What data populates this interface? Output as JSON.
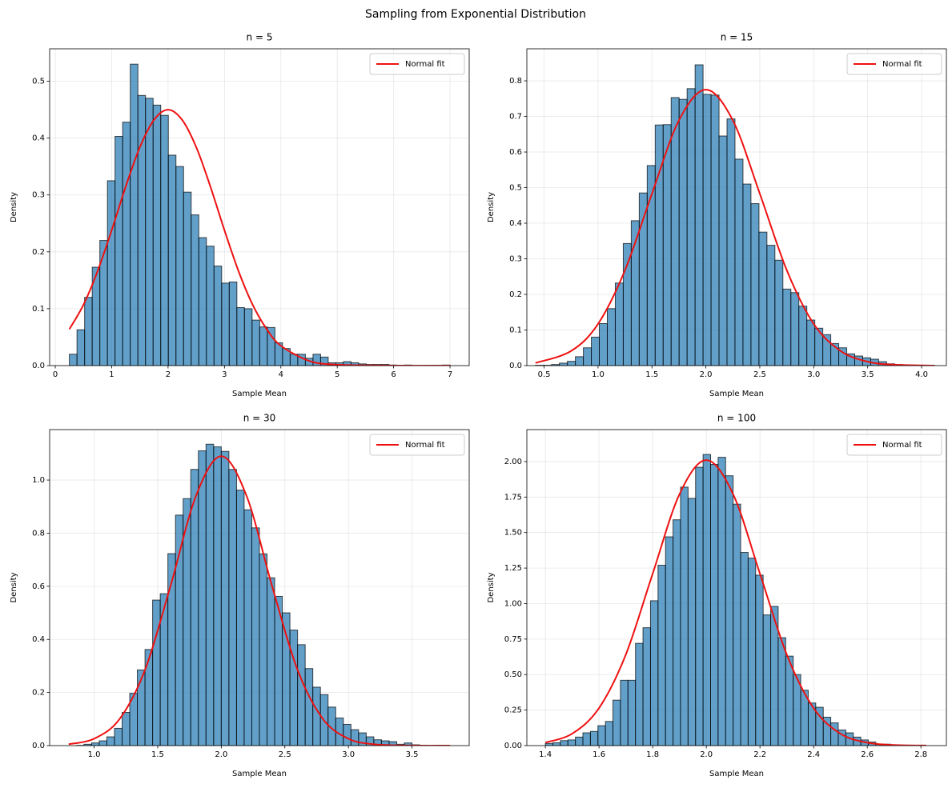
{
  "title": "Sampling from Exponential Distribution",
  "chart_data": [
    {
      "type": "histogram",
      "title": "n = 5",
      "x_label": "Sample Mean",
      "y_label": "Density",
      "color": "#1f77b4",
      "grid": true,
      "legend": "upper right",
      "xlim": [
        -0.1,
        7.34
      ],
      "ylim": [
        0,
        0.557
      ],
      "xticks": [
        0,
        1,
        2,
        3,
        4,
        5,
        6,
        7
      ],
      "yticks": [
        {
          "value": 0,
          "label": "0.0"
        },
        0.1,
        0.2,
        0.3,
        0.4,
        0.5
      ],
      "bins": [
        0.25,
        0.385,
        0.52,
        0.655,
        0.79,
        0.925,
        1.06,
        1.195,
        1.33,
        1.465,
        1.6,
        1.735,
        1.87,
        2.005,
        2.14,
        2.275,
        2.41,
        2.545,
        2.68,
        2.815,
        2.95,
        3.085,
        3.22,
        3.355,
        3.49,
        3.625,
        3.76,
        3.895,
        4.03,
        4.165,
        4.3,
        4.435,
        4.57,
        4.705,
        4.84,
        4.975,
        5.11,
        5.245,
        5.38,
        5.515,
        5.65,
        5.785,
        5.92,
        6.055,
        6.19,
        6.325,
        6.46,
        6.595,
        6.73,
        6.865,
        7.0
      ],
      "values": [
        0.02,
        0.063,
        0.12,
        0.173,
        0.22,
        0.325,
        0.403,
        0.428,
        0.53,
        0.475,
        0.47,
        0.458,
        0.44,
        0.37,
        0.35,
        0.305,
        0.265,
        0.225,
        0.21,
        0.175,
        0.145,
        0.147,
        0.102,
        0.1,
        0.08,
        0.068,
        0.067,
        0.04,
        0.03,
        0.02,
        0.02,
        0.013,
        0.02,
        0.015,
        0.005,
        0.005,
        0.007,
        0.005,
        0.003,
        0.002,
        0.002,
        0.002,
        0.001,
        0,
        0.001,
        0,
        0,
        0,
        0,
        0.001
      ],
      "line": {
        "name": "Normal fit",
        "color": "#ee1111",
        "x": [
          0.25,
          0.5,
          0.75,
          1.0,
          1.25,
          1.5,
          1.75,
          2.0,
          2.25,
          2.5,
          2.75,
          3.0,
          3.25,
          3.5,
          3.75,
          4.0,
          4.5,
          5.0,
          6.0,
          7.0
        ],
        "values": [
          0.064,
          0.107,
          0.166,
          0.238,
          0.315,
          0.384,
          0.432,
          0.45,
          0.432,
          0.384,
          0.315,
          0.238,
          0.166,
          0.107,
          0.064,
          0.035,
          0.0084,
          0.0015,
          0,
          0
        ]
      }
    },
    {
      "type": "histogram",
      "title": "n = 15",
      "x_label": "Sample Mean",
      "y_label": "Density",
      "color": "#1f77b4",
      "grid": true,
      "legend": "upper right",
      "xlim": [
        0.34,
        4.23
      ],
      "ylim": [
        0,
        0.89
      ],
      "xticks": [
        0.5,
        {
          "value": 1,
          "label": "1.0"
        },
        1.5,
        {
          "value": 2,
          "label": "2.0"
        },
        2.5,
        {
          "value": 3,
          "label": "3.0"
        },
        3.5,
        {
          "value": 4,
          "label": "4.0"
        }
      ],
      "yticks": [
        {
          "value": 0,
          "label": "0.0"
        },
        0.1,
        0.2,
        0.3,
        0.4,
        0.5,
        0.6,
        0.7,
        0.8
      ],
      "bins": [
        0.42,
        0.494,
        0.568,
        0.642,
        0.716,
        0.79,
        0.864,
        0.938,
        1.012,
        1.086,
        1.16,
        1.234,
        1.308,
        1.382,
        1.456,
        1.53,
        1.604,
        1.678,
        1.752,
        1.826,
        1.9,
        1.974,
        2.048,
        2.122,
        2.196,
        2.27,
        2.344,
        2.418,
        2.492,
        2.566,
        2.64,
        2.714,
        2.788,
        2.862,
        2.936,
        3.01,
        3.084,
        3.158,
        3.232,
        3.306,
        3.38,
        3.454,
        3.528,
        3.602,
        3.676,
        3.75,
        3.824,
        3.898,
        3.972,
        4.046,
        4.12
      ],
      "values": [
        0.001,
        0.001,
        0.003,
        0.007,
        0.012,
        0.025,
        0.05,
        0.08,
        0.118,
        0.16,
        0.232,
        0.343,
        0.407,
        0.485,
        0.562,
        0.676,
        0.677,
        0.753,
        0.748,
        0.778,
        0.845,
        0.762,
        0.76,
        0.645,
        0.693,
        0.58,
        0.51,
        0.455,
        0.375,
        0.338,
        0.296,
        0.215,
        0.205,
        0.167,
        0.128,
        0.105,
        0.087,
        0.062,
        0.05,
        0.033,
        0.027,
        0.022,
        0.018,
        0.011,
        0.005,
        0.003,
        0.002,
        0.001,
        0.001,
        0.001
      ],
      "line": {
        "name": "Normal fit",
        "color": "#ee1111",
        "x": [
          0.42,
          0.75,
          1.0,
          1.25,
          1.5,
          1.75,
          2.0,
          2.25,
          2.5,
          2.75,
          3.0,
          3.25,
          3.5,
          3.75,
          4.12
        ],
        "values": [
          0.0074,
          0.041,
          0.117,
          0.268,
          0.483,
          0.689,
          0.775,
          0.689,
          0.483,
          0.268,
          0.117,
          0.041,
          0.011,
          0.0024,
          0.0001
        ]
      }
    },
    {
      "type": "histogram",
      "title": "n = 30",
      "x_label": "Sample Mean",
      "y_label": "Density",
      "color": "#1f77b4",
      "grid": true,
      "legend": "upper right",
      "xlim": [
        0.65,
        3.95
      ],
      "ylim": [
        0,
        1.19
      ],
      "xticks": [
        {
          "value": 1,
          "label": "1.0"
        },
        1.5,
        {
          "value": 2,
          "label": "2.0"
        },
        2.5,
        {
          "value": 3,
          "label": "3.0"
        },
        3.5
      ],
      "yticks": [
        {
          "value": 0,
          "label": "0.0"
        },
        0.2,
        0.4,
        0.6,
        0.8,
        {
          "value": 1,
          "label": "1.0"
        }
      ],
      "bins": [
        0.8,
        0.86,
        0.92,
        0.98,
        1.04,
        1.1,
        1.16,
        1.22,
        1.28,
        1.34,
        1.4,
        1.46,
        1.52,
        1.58,
        1.64,
        1.7,
        1.76,
        1.82,
        1.88,
        1.94,
        2.0,
        2.06,
        2.12,
        2.18,
        2.24,
        2.3,
        2.36,
        2.42,
        2.48,
        2.54,
        2.6,
        2.66,
        2.72,
        2.78,
        2.84,
        2.9,
        2.96,
        3.02,
        3.08,
        3.14,
        3.2,
        3.26,
        3.32,
        3.38,
        3.44,
        3.5,
        3.56,
        3.62,
        3.68,
        3.74,
        3.8
      ],
      "values": [
        0,
        0.001,
        0.005,
        0.01,
        0.018,
        0.033,
        0.065,
        0.125,
        0.197,
        0.285,
        0.362,
        0.548,
        0.572,
        0.723,
        0.868,
        0.93,
        1.04,
        1.11,
        1.135,
        1.125,
        1.108,
        1.04,
        0.962,
        0.888,
        0.82,
        0.722,
        0.632,
        0.562,
        0.5,
        0.435,
        0.38,
        0.29,
        0.22,
        0.192,
        0.145,
        0.104,
        0.08,
        0.06,
        0.048,
        0.033,
        0.022,
        0.018,
        0.015,
        0.005,
        0.01,
        0.003,
        0.001,
        0,
        0.001,
        0
      ],
      "line": {
        "name": "Normal fit",
        "color": "#ee1111",
        "x": [
          0.8,
          1.0,
          1.2,
          1.4,
          1.6,
          1.8,
          2.0,
          2.2,
          2.4,
          2.6,
          2.8,
          3.0,
          3.2,
          3.5,
          3.8
        ],
        "values": [
          0.0051,
          0.026,
          0.1,
          0.285,
          0.6,
          0.939,
          1.09,
          0.939,
          0.6,
          0.285,
          0.1,
          0.026,
          0.0051,
          0.0002,
          0
        ]
      }
    },
    {
      "type": "histogram",
      "title": "n = 100",
      "x_label": "Sample Mean",
      "y_label": "Density",
      "color": "#1f77b4",
      "grid": true,
      "legend": "upper right",
      "xlim": [
        1.331,
        2.895
      ],
      "ylim": [
        0,
        2.225
      ],
      "xticks": [
        1.4,
        1.6,
        1.8,
        {
          "value": 2,
          "label": "2.0"
        },
        2.2,
        2.4,
        2.6,
        2.8
      ],
      "yticks": [
        {
          "value": 0,
          "label": "0.00"
        },
        0.25,
        {
          "value": 0.5,
          "label": "0.50"
        },
        0.75,
        {
          "value": 1,
          "label": "1.00"
        },
        1.25,
        {
          "value": 1.5,
          "label": "1.50"
        },
        1.75,
        {
          "value": 2,
          "label": "2.00"
        }
      ],
      "bins": [
        1.4,
        1.428,
        1.456,
        1.484,
        1.512,
        1.54,
        1.568,
        1.596,
        1.624,
        1.652,
        1.68,
        1.708,
        1.736,
        1.764,
        1.792,
        1.82,
        1.848,
        1.876,
        1.904,
        1.932,
        1.96,
        1.988,
        2.016,
        2.044,
        2.072,
        2.1,
        2.128,
        2.156,
        2.184,
        2.212,
        2.24,
        2.268,
        2.296,
        2.324,
        2.352,
        2.38,
        2.408,
        2.436,
        2.464,
        2.492,
        2.52,
        2.548,
        2.576,
        2.604,
        2.632,
        2.66,
        2.688,
        2.716,
        2.744,
        2.772,
        2.8
      ],
      "values": [
        0.015,
        0.02,
        0.035,
        0.04,
        0.06,
        0.09,
        0.1,
        0.14,
        0.17,
        0.32,
        0.46,
        0.46,
        0.72,
        0.83,
        1.02,
        1.27,
        1.47,
        1.59,
        1.82,
        1.74,
        1.96,
        2.05,
        1.98,
        2.03,
        1.9,
        1.7,
        1.36,
        1.32,
        1.2,
        0.92,
        0.98,
        0.76,
        0.63,
        0.5,
        0.39,
        0.3,
        0.27,
        0.2,
        0.16,
        0.11,
        0.09,
        0.06,
        0.04,
        0.025,
        0.01,
        0.01,
        0.004,
        0.003,
        0.001,
        0.002
      ],
      "line": {
        "name": "Normal fit",
        "color": "#ee1111",
        "x": [
          1.4,
          1.5,
          1.6,
          1.7,
          1.8,
          1.9,
          2.0,
          2.1,
          2.2,
          2.3,
          2.4,
          2.5,
          2.6,
          2.7,
          2.82
        ],
        "values": [
          0.021,
          0.084,
          0.264,
          0.641,
          1.21,
          1.77,
          2.01,
          1.77,
          1.21,
          0.641,
          0.264,
          0.084,
          0.021,
          0.004,
          0.0004
        ]
      }
    }
  ]
}
